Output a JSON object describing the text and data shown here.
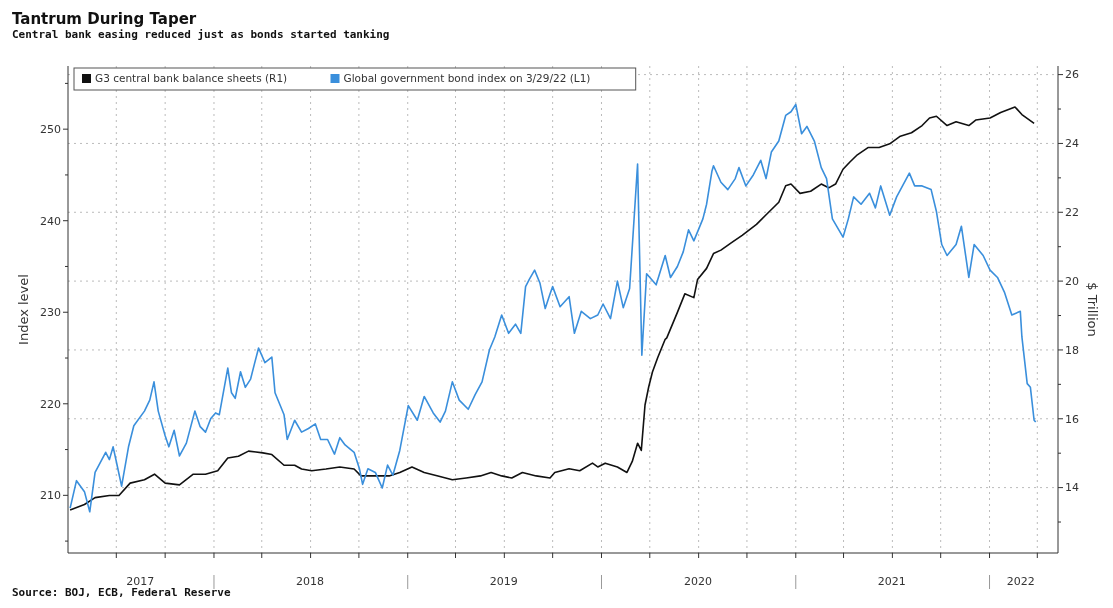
{
  "chart_data": {
    "type": "line",
    "title": "Tantrum During Taper",
    "subtitle": "Central bank easing reduced just as bonds started tanking",
    "ylabel": "Index level",
    "y2label": "$ Trillion",
    "annotations": [
      "Source: BOJ, ECB, Federal Reserve"
    ],
    "legend": "top left",
    "grid": true,
    "line_style": "solid",
    "xlim": [
      "2017-04-01",
      "2022-05-10"
    ],
    "xticks": [
      {
        "value": "2017-07-01",
        "label": null
      },
      {
        "value": "2017-08-15",
        "label": "2017"
      },
      {
        "value": "2017-10-01",
        "label": null
      },
      {
        "value": "2018-01-01",
        "label": null
      },
      {
        "value": "2018-04-01",
        "label": null
      },
      {
        "value": "2018-07-01",
        "label": "2018"
      },
      {
        "value": "2018-07-02",
        "label": null
      },
      {
        "value": "2018-10-01",
        "label": null
      },
      {
        "value": "2019-01-01",
        "label": null
      },
      {
        "value": "2019-04-01",
        "label": null
      },
      {
        "value": "2019-07-01",
        "label": "2019"
      },
      {
        "value": "2019-07-02",
        "label": null
      },
      {
        "value": "2019-10-01",
        "label": null
      },
      {
        "value": "2020-01-01",
        "label": null
      },
      {
        "value": "2020-04-01",
        "label": null
      },
      {
        "value": "2020-07-01",
        "label": "2020"
      },
      {
        "value": "2020-07-02",
        "label": null
      },
      {
        "value": "2020-10-01",
        "label": null
      },
      {
        "value": "2021-01-01",
        "label": null
      },
      {
        "value": "2021-04-01",
        "label": null
      },
      {
        "value": "2021-07-01",
        "label": "2021"
      },
      {
        "value": "2021-07-02",
        "label": null
      },
      {
        "value": "2021-10-01",
        "label": null
      },
      {
        "value": "2022-01-01",
        "label": null
      },
      {
        "value": "2022-03-01",
        "label": "2022"
      },
      {
        "value": "2022-04-01",
        "label": null
      }
    ],
    "ylim": [
      203.7,
      256.9
    ],
    "yticks": [
      {
        "value": 205,
        "label": null
      },
      210,
      {
        "value": 215,
        "label": null
      },
      220,
      {
        "value": 225,
        "label": null
      },
      230,
      {
        "value": 235,
        "label": null
      },
      240,
      {
        "value": 245,
        "label": null
      },
      250,
      {
        "value": 255,
        "label": null
      }
    ],
    "y2lim": [
      12.1,
      26.25
    ],
    "y2ticks": [
      {
        "value": 13,
        "label": null
      },
      14,
      {
        "value": 15,
        "label": null
      },
      16,
      {
        "value": 17,
        "label": null
      },
      18,
      {
        "value": 19,
        "label": null
      },
      20,
      {
        "value": 21,
        "label": null
      },
      22,
      {
        "value": 23,
        "label": null
      },
      24,
      {
        "value": 25,
        "label": null
      },
      26
    ],
    "series": [
      {
        "name": "G3 central bank balance sheets (R1)",
        "color": "#111111",
        "axis": "y2",
        "x": [
          "2017-04-05",
          "2017-05-02",
          "2017-05-22",
          "2017-06-18",
          "2017-07-06",
          "2017-07-27",
          "2017-08-23",
          "2017-09-11",
          "2017-10-01",
          "2017-10-28",
          "2017-11-23",
          "2017-12-16",
          "2018-01-08",
          "2018-01-27",
          "2018-02-16",
          "2018-03-07",
          "2018-04-03",
          "2018-04-20",
          "2018-05-13",
          "2018-06-02",
          "2018-06-15",
          "2018-07-04",
          "2018-07-31",
          "2018-08-26",
          "2018-09-22",
          "2018-10-05",
          "2018-11-01",
          "2018-11-27",
          "2018-12-17",
          "2019-01-09",
          "2019-02-01",
          "2019-02-27",
          "2019-03-26",
          "2019-04-21",
          "2019-05-18",
          "2019-06-07",
          "2019-06-27",
          "2019-07-16",
          "2019-08-05",
          "2019-08-31",
          "2019-09-26",
          "2019-10-05",
          "2019-11-01",
          "2019-11-21",
          "2019-12-15",
          "2019-12-25",
          "2020-01-08",
          "2020-01-31",
          "2020-02-18",
          "2020-02-28",
          "2020-03-09",
          "2020-03-16",
          "2020-03-23",
          "2020-03-30",
          "2020-04-06",
          "2020-04-16",
          "2020-04-30",
          "2020-05-03",
          "2020-05-23",
          "2020-06-06",
          "2020-06-23",
          "2020-06-30",
          "2020-07-17",
          "2020-07-30",
          "2020-08-13",
          "2020-09-02",
          "2020-09-22",
          "2020-10-19",
          "2020-11-09",
          "2020-11-30",
          "2020-12-13",
          "2020-12-23",
          "2021-01-09",
          "2021-01-29",
          "2021-02-18",
          "2021-03-04",
          "2021-03-17",
          "2021-03-31",
          "2021-04-13",
          "2021-04-27",
          "2021-05-17",
          "2021-06-07",
          "2021-06-27",
          "2021-07-17",
          "2021-08-07",
          "2021-08-27",
          "2021-09-10",
          "2021-09-23",
          "2021-10-13",
          "2021-10-30",
          "2021-11-23",
          "2021-12-06",
          "2022-01-02",
          "2022-01-22",
          "2022-02-18",
          "2022-03-03",
          "2022-03-26"
        ],
        "values": [
          13.35,
          13.51,
          13.71,
          13.77,
          13.77,
          14.13,
          14.23,
          14.39,
          14.13,
          14.08,
          14.39,
          14.39,
          14.49,
          14.86,
          14.91,
          15.06,
          15.01,
          14.96,
          14.65,
          14.65,
          14.54,
          14.49,
          14.54,
          14.6,
          14.54,
          14.34,
          14.34,
          14.34,
          14.44,
          14.6,
          14.44,
          14.34,
          14.23,
          14.28,
          14.34,
          14.44,
          14.34,
          14.28,
          14.44,
          14.34,
          14.28,
          14.44,
          14.55,
          14.49,
          14.71,
          14.6,
          14.71,
          14.6,
          14.44,
          14.76,
          15.29,
          15.08,
          16.4,
          16.93,
          17.36,
          17.78,
          18.31,
          18.35,
          19.09,
          19.63,
          19.52,
          20.05,
          20.37,
          20.8,
          20.9,
          21.12,
          21.33,
          21.65,
          21.97,
          22.29,
          22.77,
          22.82,
          22.55,
          22.61,
          22.82,
          22.71,
          22.82,
          23.25,
          23.46,
          23.67,
          23.88,
          23.88,
          23.99,
          24.21,
          24.31,
          24.52,
          24.74,
          24.79,
          24.52,
          24.63,
          24.52,
          24.68,
          24.74,
          24.9,
          25.06,
          24.84,
          24.58
        ]
      },
      {
        "name": "Global government bond index on 3/29/22 (L1)",
        "color": "#3a8fdc",
        "x": [
          "2017-04-05",
          "2017-04-17",
          "2017-05-02",
          "2017-05-12",
          "2017-05-22",
          "2017-06-11",
          "2017-06-18",
          "2017-06-25",
          "2017-07-01",
          "2017-07-11",
          "2017-07-24",
          "2017-08-03",
          "2017-08-23",
          "2017-09-02",
          "2017-09-10",
          "2017-09-18",
          "2017-10-01",
          "2017-10-08",
          "2017-10-18",
          "2017-10-28",
          "2017-11-10",
          "2017-11-26",
          "2017-12-06",
          "2017-12-16",
          "2017-12-26",
          "2018-01-04",
          "2018-01-11",
          "2018-01-27",
          "2018-02-03",
          "2018-02-10",
          "2018-02-20",
          "2018-03-01",
          "2018-03-11",
          "2018-03-18",
          "2018-03-26",
          "2018-04-07",
          "2018-04-20",
          "2018-04-26",
          "2018-05-13",
          "2018-05-19",
          "2018-06-02",
          "2018-06-15",
          "2018-06-28",
          "2018-07-11",
          "2018-07-21",
          "2018-08-03",
          "2018-08-16",
          "2018-08-26",
          "2018-09-05",
          "2018-09-22",
          "2018-10-02",
          "2018-10-08",
          "2018-10-18",
          "2018-11-01",
          "2018-11-14",
          "2018-11-24",
          "2018-12-04",
          "2018-12-17",
          "2019-01-02",
          "2019-01-19",
          "2019-02-01",
          "2019-02-18",
          "2019-03-03",
          "2019-03-13",
          "2019-03-26",
          "2019-04-08",
          "2019-04-25",
          "2019-05-08",
          "2019-05-21",
          "2019-06-04",
          "2019-06-14",
          "2019-06-27",
          "2019-07-10",
          "2019-07-23",
          "2019-08-02",
          "2019-08-11",
          "2019-08-18",
          "2019-08-28",
          "2019-09-07",
          "2019-09-17",
          "2019-09-26",
          "2019-10-01",
          "2019-10-15",
          "2019-11-01",
          "2019-11-11",
          "2019-11-24",
          "2019-12-11",
          "2019-12-25",
          "2020-01-04",
          "2020-01-18",
          "2020-01-31",
          "2020-02-11",
          "2020-02-23",
          "2020-03-09",
          "2020-03-17",
          "2020-03-26",
          "2020-04-13",
          "2020-04-30",
          "2020-05-10",
          "2020-05-23",
          "2020-06-03",
          "2020-06-13",
          "2020-06-23",
          "2020-07-10",
          "2020-07-17",
          "2020-07-27",
          "2020-07-30",
          "2020-08-13",
          "2020-08-26",
          "2020-09-09",
          "2020-09-16",
          "2020-09-29",
          "2020-10-13",
          "2020-10-27",
          "2020-11-06",
          "2020-11-16",
          "2020-11-30",
          "2020-12-13",
          "2020-12-23",
          "2021-01-01",
          "2021-01-12",
          "2021-01-22",
          "2021-02-05",
          "2021-02-18",
          "2021-02-28",
          "2021-03-11",
          "2021-03-31",
          "2021-04-10",
          "2021-04-20",
          "2021-05-04",
          "2021-05-20",
          "2021-05-31",
          "2021-06-10",
          "2021-06-27",
          "2021-07-10",
          "2021-08-03",
          "2021-08-13",
          "2021-08-27",
          "2021-09-13",
          "2021-09-23",
          "2021-10-03",
          "2021-10-13",
          "2021-10-30",
          "2021-11-09",
          "2021-11-23",
          "2021-12-03",
          "2021-12-20",
          "2022-01-02",
          "2022-01-16",
          "2022-01-29",
          "2022-02-12",
          "2022-02-28",
          "2022-03-03",
          "2022-03-13",
          "2022-03-19",
          "2022-03-26",
          "2022-03-29"
        ],
        "values": [
          208.6,
          211.6,
          210.4,
          208.2,
          212.5,
          214.7,
          213.9,
          215.3,
          213.7,
          211.0,
          215.3,
          217.6,
          219.2,
          220.4,
          222.4,
          219.2,
          216.5,
          215.3,
          217.1,
          214.3,
          215.7,
          219.2,
          217.5,
          216.9,
          218.4,
          219.0,
          218.8,
          223.9,
          221.2,
          220.6,
          223.5,
          221.8,
          222.7,
          224.3,
          226.1,
          224.5,
          225.1,
          221.2,
          218.8,
          216.1,
          218.2,
          216.9,
          217.3,
          217.8,
          216.1,
          216.1,
          214.5,
          216.3,
          215.5,
          214.7,
          212.9,
          211.2,
          212.9,
          212.5,
          210.8,
          213.3,
          212.2,
          214.9,
          219.8,
          218.2,
          220.8,
          219.0,
          218.0,
          219.2,
          222.4,
          220.4,
          219.4,
          221.0,
          222.4,
          225.9,
          227.3,
          229.7,
          227.7,
          228.7,
          227.7,
          232.8,
          233.6,
          234.6,
          233.2,
          230.4,
          232.0,
          232.8,
          230.6,
          231.7,
          227.7,
          230.1,
          229.3,
          229.7,
          230.9,
          229.3,
          233.4,
          230.5,
          232.6,
          246.2,
          225.3,
          234.2,
          233.0,
          236.2,
          233.8,
          235.0,
          236.6,
          239.0,
          237.8,
          240.2,
          241.8,
          245.4,
          246.0,
          244.2,
          243.4,
          244.6,
          245.8,
          243.8,
          245.0,
          246.6,
          244.6,
          247.5,
          248.7,
          251.5,
          251.9,
          252.7,
          249.5,
          250.3,
          248.7,
          245.8,
          244.6,
          240.2,
          238.2,
          240.2,
          242.6,
          241.8,
          243.0,
          241.4,
          243.8,
          240.6,
          242.6,
          245.2,
          243.8,
          243.8,
          243.4,
          241.0,
          237.4,
          236.2,
          237.4,
          239.4,
          233.8,
          237.4,
          236.2,
          234.6,
          233.8,
          232.2,
          229.7,
          230.1,
          227.3,
          222.2,
          221.8,
          218.2,
          218.0
        ]
      }
    ]
  }
}
